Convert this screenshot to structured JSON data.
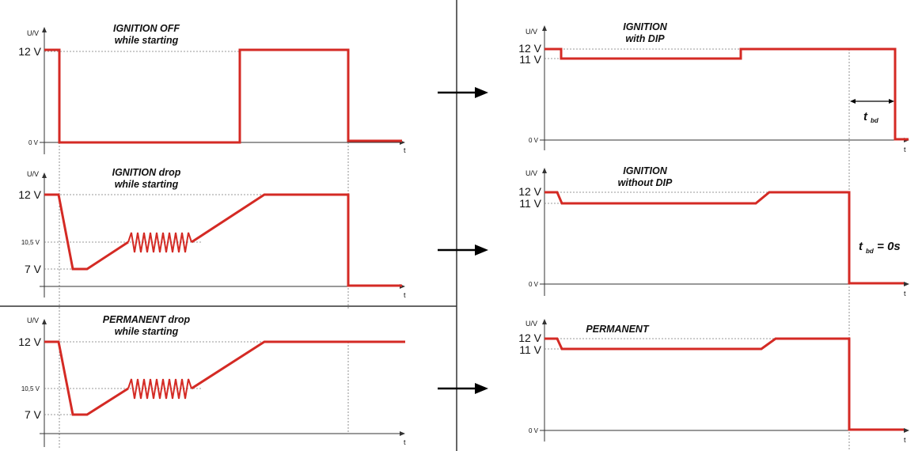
{
  "colors": {
    "signal": "#d42a24",
    "axis": "#333333",
    "guide": "#777777",
    "divider": "#333333"
  },
  "arrow_icon": "arrow-right-icon",
  "panels": [
    {
      "id": "ignition-off",
      "title_parts": [
        {
          "text": "IGNITION OFF",
          "italic": true
        }
      ],
      "subtitle": "while starting",
      "y_axis_label": "U/V",
      "x_axis_label": "t",
      "ticks": [
        {
          "label": "12 V",
          "big": true
        },
        {
          "label": "0 V",
          "big": false
        }
      ]
    },
    {
      "id": "ignition-drop",
      "title_parts": [
        {
          "text": "IGNITION drop"
        }
      ],
      "subtitle": "while starting",
      "y_axis_label": "U/V",
      "x_axis_label": "t",
      "ticks": [
        {
          "label": "12 V",
          "big": true
        },
        {
          "label": "10,5 V",
          "big": false
        },
        {
          "label": "7 V",
          "big": true
        }
      ]
    },
    {
      "id": "permanent-drop",
      "title_parts": [
        {
          "text": "PERMANENT drop"
        }
      ],
      "subtitle": "while starting",
      "y_axis_label": "U/V",
      "x_axis_label": "t",
      "ticks": [
        {
          "label": "12 V",
          "big": true
        },
        {
          "label": "10,5 V",
          "big": false
        },
        {
          "label": "7 V",
          "big": true
        }
      ]
    },
    {
      "id": "ignition-with-dip",
      "title_parts": [
        {
          "text": "IGNITION"
        }
      ],
      "subtitle": "with DIP",
      "y_axis_label": "U/V",
      "x_axis_label": "t",
      "ticks": [
        {
          "label": "12 V",
          "big": true
        },
        {
          "label": "11 V",
          "big": true
        },
        {
          "label": "0 V",
          "big": false
        }
      ],
      "annotation": {
        "main": "t",
        "sub": "bd",
        "suffix": ""
      }
    },
    {
      "id": "ignition-without-dip",
      "title_parts": [
        {
          "text": "IGNITION"
        }
      ],
      "subtitle": "without DIP",
      "y_axis_label": "U/V",
      "x_axis_label": "t",
      "ticks": [
        {
          "label": "12 V",
          "big": true
        },
        {
          "label": "11 V",
          "big": true
        },
        {
          "label": "0 V",
          "big": false
        }
      ],
      "annotation": {
        "main": "t",
        "sub": "bd",
        "suffix": " = 0s"
      }
    },
    {
      "id": "permanent",
      "title_parts": [
        {
          "text": "PERMANENT"
        }
      ],
      "subtitle": "",
      "y_axis_label": "U/V",
      "x_axis_label": "t",
      "ticks": [
        {
          "label": "12 V",
          "big": true
        },
        {
          "label": "11 V",
          "big": true
        },
        {
          "label": "0 V",
          "big": false
        }
      ]
    }
  ]
}
